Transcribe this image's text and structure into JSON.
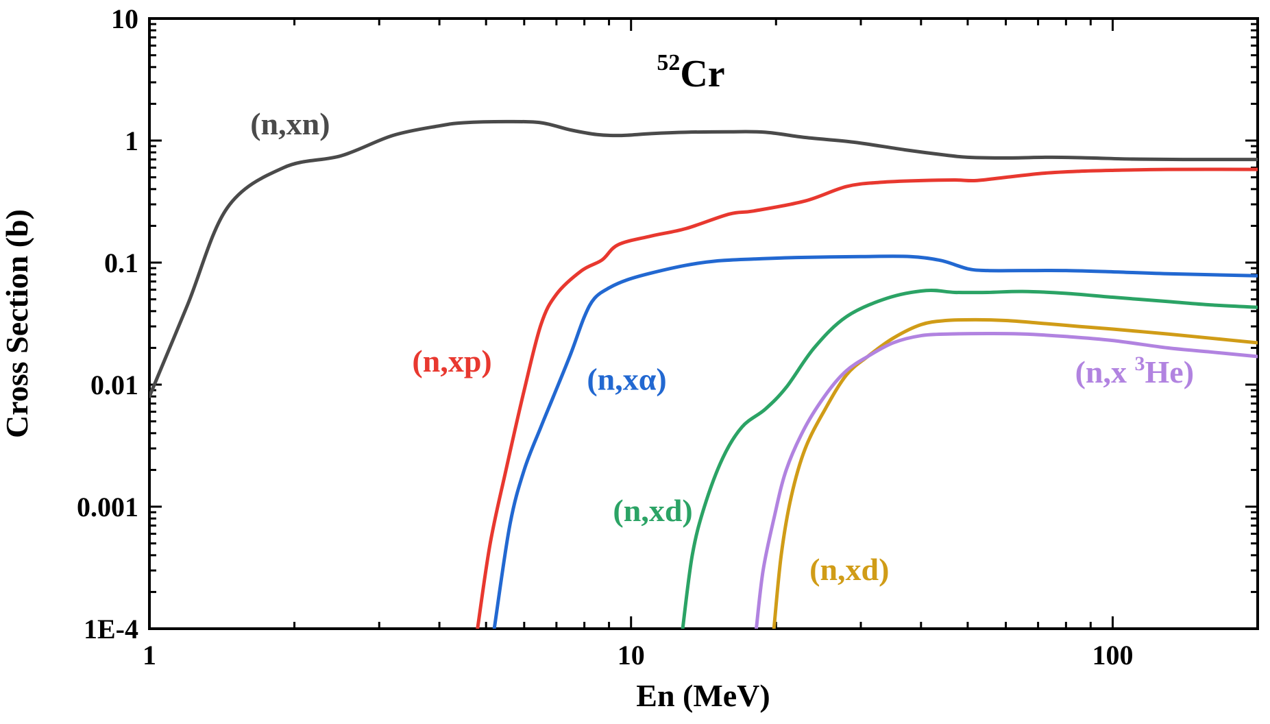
{
  "title": {
    "sup": "52",
    "text": "Cr"
  },
  "x_axis": {
    "label": "En (MeV)",
    "scale": "log",
    "min": 1,
    "max": 200,
    "major_ticks": [
      1,
      10,
      100
    ],
    "tick_labels": [
      "1",
      "10",
      "100"
    ]
  },
  "y_axis": {
    "label": "Cross Section (b)",
    "scale": "log",
    "min": 0.0001,
    "max": 10,
    "major_ticks": [
      0.0001,
      0.001,
      0.01,
      0.1,
      1,
      10
    ],
    "tick_labels": [
      "1E-4",
      "0.001",
      "0.01",
      "0.1",
      "1",
      "10"
    ]
  },
  "frame_color": "#000000",
  "chart_data": {
    "type": "line",
    "grid": false,
    "legend": "inline-colored-labels",
    "title": "52Cr neutron-induced cross sections",
    "xlabel": "En (MeV)",
    "ylabel": "Cross Section (b)",
    "xlim": [
      1,
      200
    ],
    "ylim": [
      0.0001,
      10
    ],
    "series": [
      {
        "name": "n-xn",
        "label": {
          "pre": "(n,xn)",
          "sup": "",
          "post": ""
        },
        "color": "#4a4a4a",
        "label_pos": [
          1.96,
          1.12
        ],
        "points": [
          [
            1,
            0.008
          ],
          [
            1.2,
            0.045
          ],
          [
            1.45,
            0.28
          ],
          [
            1.9,
            0.6
          ],
          [
            2.5,
            0.75
          ],
          [
            3.2,
            1.1
          ],
          [
            4.0,
            1.32
          ],
          [
            4.5,
            1.4
          ],
          [
            5.5,
            1.43
          ],
          [
            6.5,
            1.4
          ],
          [
            7.5,
            1.22
          ],
          [
            8.5,
            1.12
          ],
          [
            9.5,
            1.1
          ],
          [
            11,
            1.14
          ],
          [
            13,
            1.17
          ],
          [
            16,
            1.18
          ],
          [
            19,
            1.17
          ],
          [
            23,
            1.06
          ],
          [
            29,
            0.97
          ],
          [
            37,
            0.84
          ],
          [
            45,
            0.76
          ],
          [
            50,
            0.73
          ],
          [
            60,
            0.72
          ],
          [
            75,
            0.73
          ],
          [
            90,
            0.72
          ],
          [
            110,
            0.705
          ],
          [
            140,
            0.7
          ],
          [
            200,
            0.7
          ]
        ]
      },
      {
        "name": "n-xp",
        "label": {
          "pre": "(n,xp)",
          "sup": "",
          "post": ""
        },
        "color": "#e8382f",
        "label_pos": [
          4.25,
          0.0128
        ],
        "points": [
          [
            4.8,
            0.0001
          ],
          [
            5.1,
            0.0005
          ],
          [
            5.5,
            0.002
          ],
          [
            6.0,
            0.009
          ],
          [
            6.5,
            0.031
          ],
          [
            7.0,
            0.055
          ],
          [
            7.9,
            0.086
          ],
          [
            8.7,
            0.105
          ],
          [
            9.4,
            0.14
          ],
          [
            11,
            0.165
          ],
          [
            13,
            0.19
          ],
          [
            16,
            0.25
          ],
          [
            18,
            0.265
          ],
          [
            23,
            0.32
          ],
          [
            28,
            0.42
          ],
          [
            33,
            0.455
          ],
          [
            40,
            0.47
          ],
          [
            47,
            0.475
          ],
          [
            52,
            0.47
          ],
          [
            60,
            0.5
          ],
          [
            72,
            0.54
          ],
          [
            85,
            0.56
          ],
          [
            100,
            0.57
          ],
          [
            130,
            0.58
          ],
          [
            200,
            0.58
          ]
        ]
      },
      {
        "name": "n-xa",
        "label": {
          "pre": "(n,xα)",
          "sup": "",
          "post": ""
        },
        "color": "#2268d1",
        "label_pos": [
          9.8,
          0.0091
        ],
        "points": [
          [
            5.2,
            0.0001
          ],
          [
            5.6,
            0.0007
          ],
          [
            6.0,
            0.002
          ],
          [
            6.5,
            0.0045
          ],
          [
            6.9,
            0.008
          ],
          [
            7.5,
            0.018
          ],
          [
            8.0,
            0.036
          ],
          [
            8.4,
            0.051
          ],
          [
            9.0,
            0.062
          ],
          [
            9.8,
            0.072
          ],
          [
            11,
            0.082
          ],
          [
            13,
            0.095
          ],
          [
            15,
            0.103
          ],
          [
            18,
            0.107
          ],
          [
            22,
            0.11
          ],
          [
            30,
            0.112
          ],
          [
            38,
            0.112
          ],
          [
            44,
            0.104
          ],
          [
            50,
            0.089
          ],
          [
            55,
            0.086
          ],
          [
            65,
            0.086
          ],
          [
            80,
            0.086
          ],
          [
            100,
            0.084
          ],
          [
            130,
            0.081
          ],
          [
            200,
            0.078
          ]
        ]
      },
      {
        "name": "n-xd-green",
        "label": {
          "pre": "(n,xd)",
          "sup": "",
          "post": ""
        },
        "color": "#2ba365",
        "label_pos": [
          11.1,
          0.00076
        ],
        "points": [
          [
            12.8,
            0.0001
          ],
          [
            13.4,
            0.0004
          ],
          [
            14.2,
            0.001
          ],
          [
            15.5,
            0.0025
          ],
          [
            17,
            0.0045
          ],
          [
            19,
            0.0063
          ],
          [
            21,
            0.0095
          ],
          [
            24,
            0.02
          ],
          [
            28,
            0.036
          ],
          [
            34,
            0.051
          ],
          [
            41,
            0.059
          ],
          [
            47,
            0.057
          ],
          [
            55,
            0.057
          ],
          [
            65,
            0.058
          ],
          [
            80,
            0.056
          ],
          [
            100,
            0.052
          ],
          [
            130,
            0.048
          ],
          [
            160,
            0.045
          ],
          [
            200,
            0.043
          ]
        ]
      },
      {
        "name": "n-xd-gold",
        "label": {
          "pre": "(n,xd)",
          "sup": "",
          "post": ""
        },
        "color": "#d09c17",
        "label_pos": [
          28.4,
          0.00025
        ],
        "points": [
          [
            19.8,
            0.0001
          ],
          [
            20.5,
            0.0004
          ],
          [
            21.5,
            0.0012
          ],
          [
            23,
            0.003
          ],
          [
            25.3,
            0.0063
          ],
          [
            28,
            0.012
          ],
          [
            31,
            0.017
          ],
          [
            35,
            0.024
          ],
          [
            40,
            0.031
          ],
          [
            45,
            0.0335
          ],
          [
            52,
            0.034
          ],
          [
            60,
            0.0335
          ],
          [
            70,
            0.032
          ],
          [
            85,
            0.03
          ],
          [
            100,
            0.0285
          ],
          [
            130,
            0.026
          ],
          [
            160,
            0.024
          ],
          [
            200,
            0.022
          ]
        ]
      },
      {
        "name": "n-x3he",
        "label": {
          "pre": "(n,x ",
          "sup": "3",
          "post": "He)"
        },
        "color": "#b183e0",
        "label_pos": [
          111,
          0.0104
        ],
        "points": [
          [
            18.2,
            0.0001
          ],
          [
            18.8,
            0.0003
          ],
          [
            19.8,
            0.0008
          ],
          [
            21,
            0.002
          ],
          [
            23,
            0.0045
          ],
          [
            25.6,
            0.0087
          ],
          [
            28,
            0.013
          ],
          [
            31,
            0.017
          ],
          [
            35,
            0.022
          ],
          [
            40,
            0.0252
          ],
          [
            46,
            0.026
          ],
          [
            55,
            0.0262
          ],
          [
            65,
            0.026
          ],
          [
            80,
            0.0248
          ],
          [
            100,
            0.023
          ],
          [
            130,
            0.02
          ],
          [
            160,
            0.0185
          ],
          [
            200,
            0.017
          ]
        ]
      }
    ]
  }
}
